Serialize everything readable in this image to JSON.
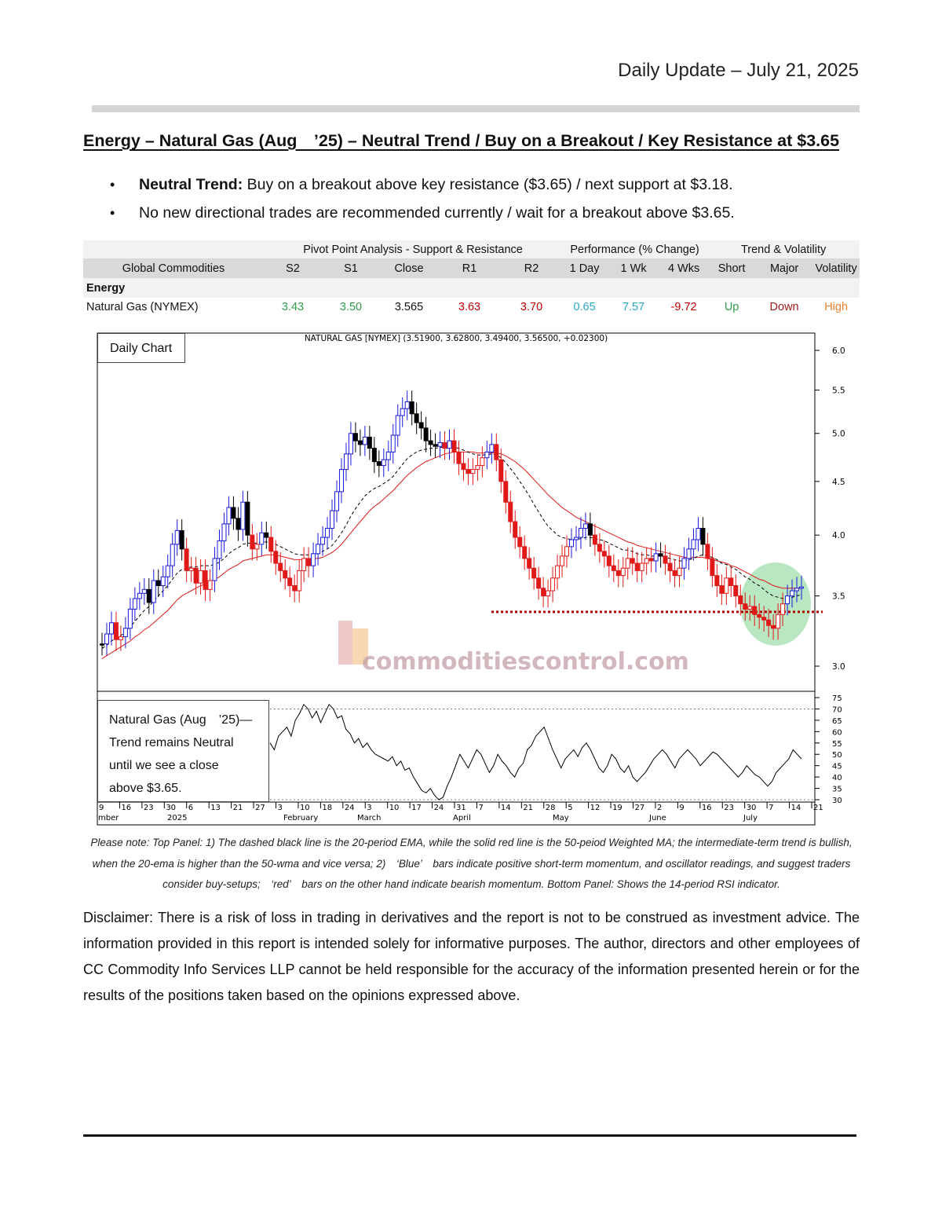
{
  "header": {
    "date": "Daily Update – July 21, 2025"
  },
  "title": "Energy – Natural Gas (Aug ’25) – Neutral Trend / Buy on a Breakout / Key Resistance at $3.65",
  "bullets": [
    {
      "lead": "Neutral Trend:",
      "text": " Buy on a breakout above key resistance ($3.65) / next support at $3.18."
    },
    {
      "lead": "",
      "text": "No new directional trades are recommended currently / wait for a breakout above $3.65."
    }
  ],
  "table": {
    "groups": {
      "pivot": "Pivot Point Analysis - Support & Resistance",
      "performance": "Performance (% Change)",
      "trend": "Trend & Volatility"
    },
    "columns": [
      "Global Commodities",
      "S2",
      "S1",
      "Close",
      "R1",
      "R2",
      "1 Day",
      "1 Wk",
      "4 Wks",
      "Short",
      "Major",
      "Volatility"
    ],
    "section": "Energy",
    "row": {
      "name": "Natural Gas (NYMEX)",
      "s2": "3.43",
      "s1": "3.50",
      "close": "3.565",
      "r1": "3.63",
      "r2": "3.70",
      "day1": "0.65",
      "wk1": "7.57",
      "wks4": "-9.72",
      "short": "Up",
      "major": "Down",
      "volatility": "High"
    }
  },
  "chart": {
    "daily_label": "Daily Chart",
    "header": "NATURAL GAS [NYMEX] (3.51900, 3.62800, 3.49400, 3.56500, +0.02300)",
    "watermark": "commoditiescontrol.com",
    "rsi_note": [
      "Natural Gas (Aug ’25)—",
      "Trend remains Neutral",
      "until we see a close",
      "above $3.65."
    ],
    "price_ticks": [
      "6.0",
      "5.5",
      "5.0",
      "4.5",
      "4.0",
      "3.5",
      "3.0"
    ],
    "rsi_ticks": [
      "75",
      "70",
      "65",
      "60",
      "55",
      "50",
      "45",
      "40",
      "35",
      "30"
    ],
    "date_ticks": [
      "9",
      "16",
      "23",
      "30",
      "6",
      "13",
      "21",
      "27",
      "3",
      "10",
      "18",
      "24",
      "3",
      "10",
      "17",
      "24",
      "31",
      "7",
      "14",
      "21",
      "28",
      "5",
      "12",
      "19",
      "27",
      "2",
      "9",
      "16",
      "23",
      "30",
      "7",
      "14",
      "21"
    ],
    "month_labels": [
      "mber",
      "2025",
      "February",
      "March",
      "April",
      "May",
      "June",
      "July"
    ],
    "colors": {
      "up_bar": "#1a1adb",
      "down_bar": "#e01818",
      "neutral_bar": "#000000",
      "ema": "#000000",
      "wma": "#e01818",
      "support_line": "#b00000",
      "highlight": "#7fd48f"
    }
  },
  "chart_data": {
    "type": "candlestick",
    "title": "NATURAL GAS [NYMEX] (3.51900, 3.62800, 3.49400, 3.56500, +0.02300)",
    "y_scale": "log",
    "ylim": [
      2.9,
      6.1
    ],
    "support_level": 3.38,
    "close_series": [
      3.15,
      3.22,
      3.3,
      3.18,
      3.2,
      3.26,
      3.4,
      3.48,
      3.52,
      3.55,
      3.45,
      3.62,
      3.58,
      3.65,
      3.74,
      3.92,
      4.04,
      3.88,
      3.7,
      3.72,
      3.6,
      3.7,
      3.55,
      3.62,
      3.8,
      3.95,
      4.1,
      4.25,
      4.15,
      4.05,
      4.3,
      4.0,
      3.88,
      3.92,
      4.02,
      3.98,
      3.86,
      3.76,
      3.7,
      3.64,
      3.58,
      3.54,
      3.7,
      3.8,
      3.74,
      3.84,
      3.92,
      3.98,
      4.06,
      4.22,
      4.4,
      4.62,
      4.78,
      5.0,
      4.92,
      4.88,
      4.96,
      4.84,
      4.7,
      4.66,
      4.72,
      4.8,
      4.98,
      5.2,
      5.28,
      5.36,
      5.22,
      5.12,
      5.06,
      4.92,
      4.88,
      4.86,
      4.9,
      4.84,
      4.92,
      4.8,
      4.68,
      4.62,
      4.58,
      4.62,
      4.66,
      4.74,
      4.8,
      4.88,
      4.72,
      4.5,
      4.3,
      4.12,
      3.98,
      3.9,
      3.8,
      3.72,
      3.64,
      3.56,
      3.5,
      3.54,
      3.64,
      3.74,
      3.82,
      3.9,
      3.96,
      3.98,
      4.06,
      4.1,
      4.0,
      3.92,
      3.86,
      3.82,
      3.74,
      3.7,
      3.66,
      3.72,
      3.8,
      3.76,
      3.7,
      3.76,
      3.8,
      3.78,
      3.84,
      3.82,
      3.76,
      3.7,
      3.66,
      3.72,
      3.8,
      3.88,
      3.96,
      4.06,
      3.92,
      3.8,
      3.66,
      3.58,
      3.52,
      3.64,
      3.58,
      3.5,
      3.44,
      3.4,
      3.42,
      3.36,
      3.34,
      3.32,
      3.28,
      3.26,
      3.36,
      3.44,
      3.5,
      3.54,
      3.56,
      3.57
    ],
    "ema20_series": [
      3.12,
      3.14,
      3.17,
      3.19,
      3.21,
      3.23,
      3.27,
      3.31,
      3.35,
      3.39,
      3.42,
      3.46,
      3.5,
      3.54,
      3.58,
      3.63,
      3.68,
      3.71,
      3.72,
      3.73,
      3.73,
      3.74,
      3.74,
      3.74,
      3.75,
      3.77,
      3.8,
      3.84,
      3.87,
      3.89,
      3.92,
      3.93,
      3.93,
      3.93,
      3.94,
      3.94,
      3.93,
      3.92,
      3.9,
      3.88,
      3.86,
      3.84,
      3.83,
      3.83,
      3.83,
      3.83,
      3.84,
      3.86,
      3.88,
      3.91,
      3.96,
      4.02,
      4.09,
      4.17,
      4.24,
      4.3,
      4.36,
      4.4,
      4.43,
      4.45,
      4.48,
      4.51,
      4.55,
      4.61,
      4.67,
      4.73,
      4.77,
      4.8,
      4.82,
      4.83,
      4.84,
      4.84,
      4.85,
      4.85,
      4.86,
      4.85,
      4.84,
      4.82,
      4.8,
      4.78,
      4.77,
      4.77,
      4.77,
      4.78,
      4.77,
      4.74,
      4.69,
      4.63,
      4.57,
      4.5,
      4.43,
      4.36,
      4.28,
      4.21,
      4.14,
      4.08,
      4.04,
      4.0,
      3.98,
      3.97,
      3.96,
      3.96,
      3.97,
      3.98,
      3.98,
      3.97,
      3.96,
      3.95,
      3.93,
      3.91,
      3.89,
      3.87,
      3.87,
      3.86,
      3.84,
      3.83,
      3.83,
      3.82,
      3.82,
      3.82,
      3.81,
      3.8,
      3.79,
      3.78,
      3.78,
      3.79,
      3.8,
      3.82,
      3.83,
      3.82,
      3.81,
      3.79,
      3.76,
      3.75,
      3.73,
      3.71,
      3.68,
      3.65,
      3.63,
      3.6,
      3.58,
      3.55,
      3.52,
      3.5,
      3.49,
      3.48,
      3.48,
      3.49,
      3.5,
      3.51
    ],
    "wma50_series": [
      3.05,
      3.07,
      3.09,
      3.11,
      3.13,
      3.15,
      3.17,
      3.2,
      3.22,
      3.25,
      3.27,
      3.3,
      3.33,
      3.36,
      3.39,
      3.43,
      3.47,
      3.5,
      3.52,
      3.54,
      3.56,
      3.58,
      3.59,
      3.61,
      3.63,
      3.65,
      3.68,
      3.71,
      3.73,
      3.75,
      3.78,
      3.79,
      3.8,
      3.81,
      3.82,
      3.83,
      3.83,
      3.83,
      3.82,
      3.81,
      3.8,
      3.79,
      3.79,
      3.79,
      3.79,
      3.8,
      3.8,
      3.81,
      3.83,
      3.85,
      3.88,
      3.92,
      3.97,
      4.02,
      4.07,
      4.12,
      4.17,
      4.22,
      4.26,
      4.29,
      4.33,
      4.37,
      4.41,
      4.46,
      4.51,
      4.56,
      4.6,
      4.64,
      4.67,
      4.7,
      4.72,
      4.74,
      4.76,
      4.78,
      4.79,
      4.8,
      4.8,
      4.8,
      4.8,
      4.8,
      4.79,
      4.79,
      4.79,
      4.79,
      4.79,
      4.78,
      4.76,
      4.73,
      4.7,
      4.66,
      4.62,
      4.57,
      4.52,
      4.47,
      4.42,
      4.37,
      4.33,
      4.29,
      4.25,
      4.22,
      4.19,
      4.16,
      4.14,
      4.12,
      4.1,
      4.08,
      4.06,
      4.04,
      4.02,
      4.0,
      3.98,
      3.96,
      3.94,
      3.93,
      3.91,
      3.9,
      3.89,
      3.88,
      3.87,
      3.86,
      3.85,
      3.84,
      3.83,
      3.82,
      3.81,
      3.81,
      3.81,
      3.81,
      3.81,
      3.8,
      3.79,
      3.78,
      3.77,
      3.76,
      3.74,
      3.73,
      3.71,
      3.69,
      3.67,
      3.65,
      3.63,
      3.62,
      3.6,
      3.58,
      3.57,
      3.56,
      3.56,
      3.56,
      3.56,
      3.56
    ],
    "rsi_series": [
      55,
      52,
      58,
      60,
      62,
      58,
      65,
      68,
      72,
      70,
      66,
      69,
      64,
      68,
      72,
      70,
      66,
      67,
      61,
      59,
      55,
      57,
      53,
      55,
      52,
      50,
      49,
      48,
      47,
      49,
      45,
      47,
      43,
      44,
      40,
      37,
      34,
      33,
      35,
      32,
      30,
      31,
      36,
      40,
      45,
      50,
      47,
      44,
      48,
      52,
      50,
      46,
      42,
      45,
      50,
      47,
      45,
      42,
      40,
      44,
      46,
      52,
      54,
      58,
      60,
      62,
      57,
      52,
      48,
      44,
      48,
      50,
      52,
      49,
      53,
      55,
      52,
      48,
      44,
      42,
      45,
      50,
      48,
      44,
      42,
      45,
      40,
      38,
      40,
      42,
      45,
      48,
      50,
      52,
      50,
      47,
      44,
      48,
      50,
      52,
      50,
      48,
      45,
      47,
      49,
      51,
      50,
      48,
      46,
      44,
      42,
      40,
      42,
      45,
      43,
      41,
      40,
      38,
      36,
      38,
      42,
      44,
      46,
      48,
      52,
      50,
      48
    ],
    "dates": [
      "Dec 9",
      "Dec 16",
      "Dec 23",
      "Dec 30",
      "Jan 6",
      "Jan 13",
      "Jan 21",
      "Jan 27",
      "Feb 3",
      "Feb 10",
      "Feb 18",
      "Feb 24",
      "Mar 3",
      "Mar 10",
      "Mar 17",
      "Mar 24",
      "Mar 31",
      "Apr 7",
      "Apr 14",
      "Apr 21",
      "Apr 28",
      "May 5",
      "May 12",
      "May 19",
      "May 27",
      "Jun 2",
      "Jun 9",
      "Jun 16",
      "Jun 23",
      "Jun 30",
      "Jul 7",
      "Jul 14",
      "Jul 21"
    ]
  },
  "note": "Please note: Top Panel: 1) The dashed black line is the 20-period EMA, while the solid red line is the 50-peiod Weighted MA; the intermediate-term trend is bullish, when the 20-ema is higher than the 50-wma and vice versa; 2) ‘Blue’ bars indicate positive short-term momentum, and oscillator readings, and suggest traders consider buy-setups; ‘red’ bars on the other hand indicate bearish momentum. Bottom Panel: Shows the 14-period RSI indicator.",
  "disclaimer": "Disclaimer: There is a risk of loss in trading in derivatives and the report is not to be construed as investment advice. The information provided in this report is intended solely for informative purposes. The author, directors and other employees of CC Commodity Info Services LLP cannot be held responsible for the accuracy of the information presented herein or for the results of the positions taken based on the opinions expressed above."
}
